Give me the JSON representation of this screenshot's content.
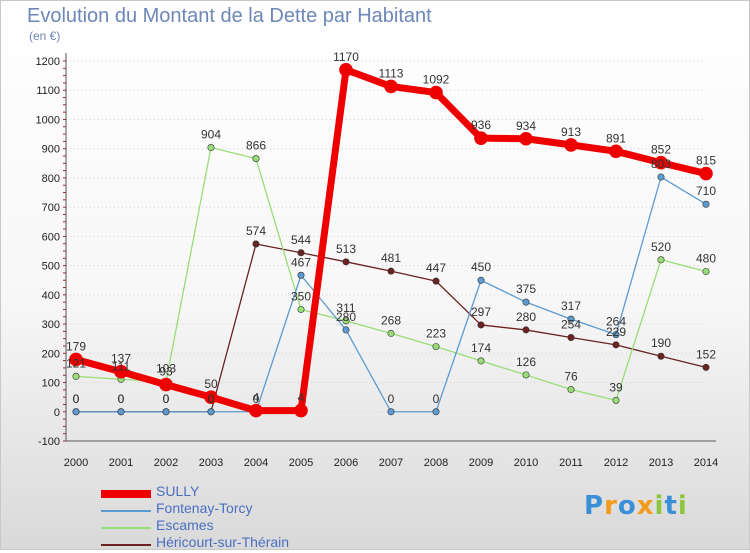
{
  "title": "Evolution du Montant de la Dette par Habitant",
  "subtitle": "(en €)",
  "logo": {
    "letters": [
      "P",
      "r",
      "o",
      "x",
      "i",
      "t",
      "i"
    ],
    "colors": [
      "#3b8fd6",
      "#f29a1a",
      "#3b8fd6",
      "#f29a1a",
      "#8cc63f",
      "#3b8fd6",
      "#8cc63f"
    ]
  },
  "chart_data": {
    "type": "line",
    "title": "Evolution du Montant de la Dette par Habitant",
    "ylabel": "(en €)",
    "x": [
      "2000",
      "2001",
      "2002",
      "2003",
      "2004",
      "2005",
      "2006",
      "2007",
      "2008",
      "2009",
      "2010",
      "2011",
      "2012",
      "2013",
      "2014"
    ],
    "ylim": [
      -100,
      1200
    ],
    "yticks": [
      "-100",
      "0",
      "100",
      "200",
      "300",
      "400",
      "500",
      "600",
      "700",
      "800",
      "900",
      "1000",
      "1100",
      "1200"
    ],
    "series": [
      {
        "name": "Héricourt-sur-Thérain",
        "color": "#6b2222",
        "width": 1.3,
        "values": [
          0,
          0,
          0,
          0,
          574,
          544,
          513,
          481,
          447,
          297,
          280,
          254,
          229,
          190,
          152
        ],
        "labels": [
          "0",
          "0",
          "0",
          "0",
          "574",
          "544",
          "513",
          "481",
          "447",
          "297",
          "280",
          "254",
          "229",
          "190",
          "152"
        ]
      },
      {
        "name": "Escames",
        "color": "#99dd77",
        "width": 1.3,
        "values": [
          121,
          111,
          103,
          904,
          866,
          350,
          311,
          268,
          223,
          174,
          126,
          76,
          39,
          520,
          480
        ],
        "labels": [
          "121",
          "111",
          "103",
          "904",
          "866",
          "350",
          "311",
          "268",
          "223",
          "174",
          "126",
          "76",
          "39",
          "520",
          "480"
        ]
      },
      {
        "name": "Fontenay-Torcy",
        "color": "#5c9bd1",
        "width": 1.3,
        "values": [
          0,
          0,
          0,
          0,
          0,
          467,
          280,
          0,
          0,
          450,
          375,
          317,
          264,
          803,
          710
        ],
        "labels": [
          "0",
          "0",
          "0",
          "0",
          "0",
          "467",
          "280",
          "0",
          "0",
          "450",
          "375",
          "317",
          "264",
          "803",
          "710"
        ]
      },
      {
        "name": "SULLY",
        "color": "#ee0000",
        "width": 7,
        "values": [
          179,
          137,
          93,
          50,
          4,
          4,
          1170,
          1113,
          1092,
          936,
          934,
          913,
          891,
          852,
          815
        ],
        "labels": [
          "179",
          "137",
          "93",
          "50",
          "4",
          "4",
          "1170",
          "1113",
          "1092",
          "936",
          "934",
          "913",
          "891",
          "852",
          "815"
        ]
      }
    ],
    "legend": [
      "SULLY",
      "Fontenay-Torcy",
      "Escames",
      "Héricourt-sur-Thérain"
    ]
  }
}
